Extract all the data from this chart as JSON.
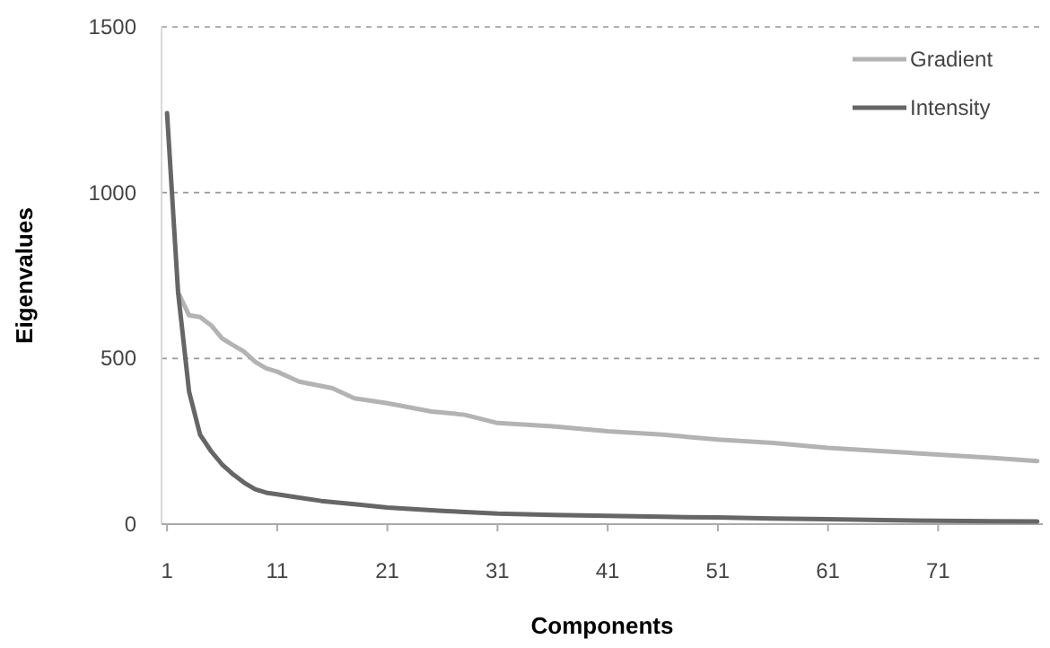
{
  "chart_data": {
    "type": "line",
    "xlabel": "Components",
    "ylabel": "Eigenvalues",
    "xlim": [
      0.5,
      80.5
    ],
    "ylim": [
      0,
      1500
    ],
    "xticks": [
      1,
      11,
      21,
      31,
      41,
      51,
      61,
      71
    ],
    "yticks": [
      0,
      500,
      1000,
      1500
    ],
    "grid": "y",
    "legend": "top right",
    "line_style": "solid",
    "marker": "none",
    "series": [
      {
        "name": "Gradient",
        "color": "#b3b3b3",
        "x": [
          2,
          3,
          4,
          5,
          6,
          7,
          8,
          9,
          10,
          11,
          13,
          16,
          18,
          21,
          25,
          28,
          31,
          36,
          41,
          46,
          51,
          56,
          61,
          66,
          71,
          76,
          80
        ],
        "values": [
          700,
          630,
          625,
          600,
          560,
          540,
          520,
          490,
          470,
          460,
          430,
          410,
          380,
          365,
          340,
          330,
          305,
          295,
          280,
          270,
          255,
          245,
          230,
          220,
          210,
          200,
          190
        ]
      },
      {
        "name": "Intensity",
        "color": "#666666",
        "x": [
          1,
          2,
          3,
          4,
          5,
          6,
          7,
          8,
          9,
          10,
          11,
          13,
          15,
          18,
          21,
          26,
          31,
          36,
          41,
          46,
          51,
          56,
          61,
          66,
          71,
          76,
          80
        ],
        "values": [
          1240,
          700,
          400,
          270,
          220,
          180,
          150,
          125,
          105,
          95,
          90,
          80,
          70,
          60,
          50,
          40,
          32,
          28,
          25,
          22,
          20,
          17,
          15,
          12,
          10,
          9,
          8
        ]
      }
    ]
  }
}
